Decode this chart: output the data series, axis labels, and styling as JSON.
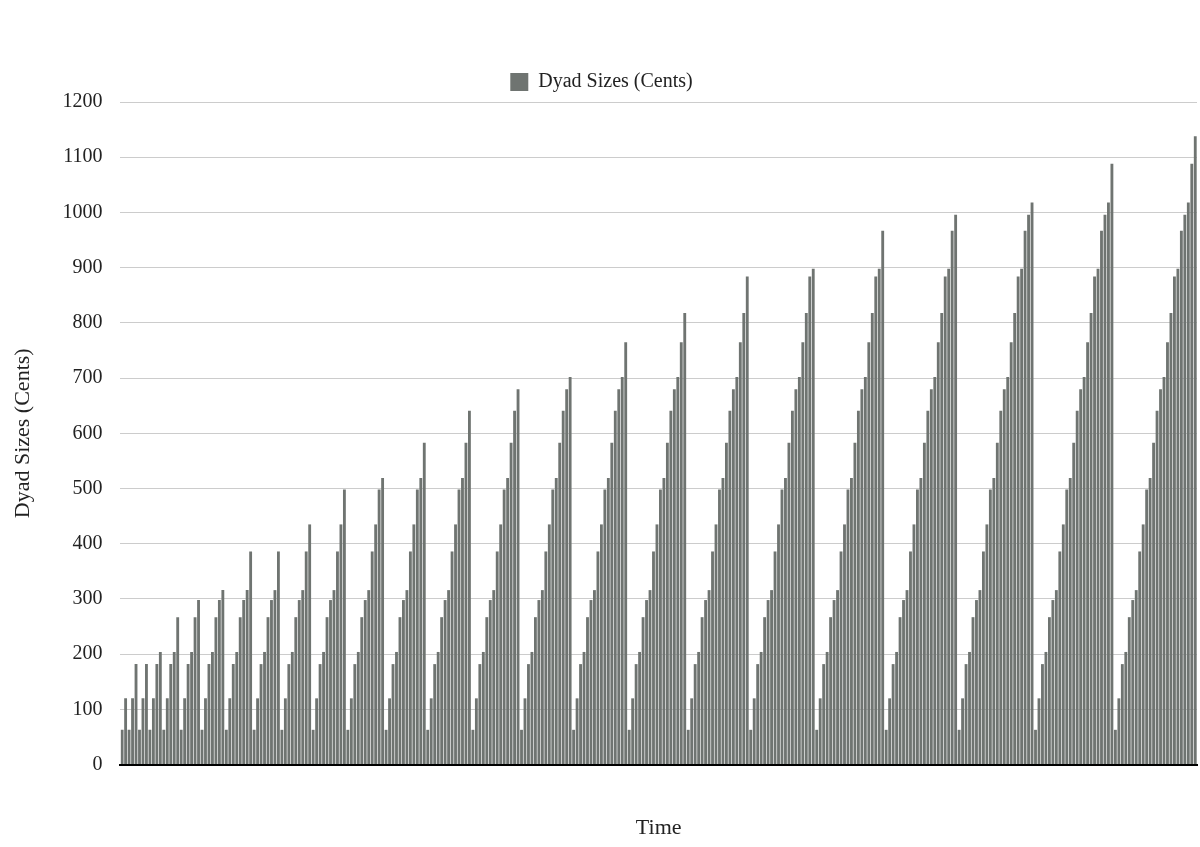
{
  "chart_data": {
    "type": "bar",
    "xlabel": "Time",
    "ylabel": "Dyad Sizes (Cents)",
    "legend": "top",
    "grid": "y",
    "ylim": [
      0,
      1200
    ],
    "yticks": [
      0,
      100,
      200,
      300,
      400,
      500,
      600,
      700,
      800,
      900,
      1000,
      1100,
      1200
    ],
    "categories": [
      null,
      null,
      null,
      null,
      null,
      null,
      null,
      null,
      null,
      null,
      null,
      null,
      null,
      null,
      null,
      null,
      null,
      null,
      null,
      null,
      null,
      null,
      null,
      null,
      null,
      null,
      null,
      null,
      null,
      null,
      null,
      null,
      null,
      null,
      null,
      null,
      null,
      null,
      null,
      null,
      null,
      null,
      null,
      null,
      null,
      null,
      null,
      null,
      null,
      null,
      null,
      null,
      null,
      null,
      null,
      null,
      null,
      null,
      null,
      null,
      null,
      null,
      null,
      null,
      null,
      null,
      null,
      null,
      null,
      null,
      null,
      null,
      null,
      null,
      null,
      null,
      null,
      null,
      null,
      null,
      null,
      null,
      null,
      null,
      null,
      null,
      null,
      null,
      null,
      null,
      null,
      null,
      null,
      null,
      null,
      null,
      null,
      null,
      null,
      null,
      null,
      null,
      null,
      null,
      null,
      null,
      null,
      null,
      null,
      null,
      null,
      null,
      null,
      null,
      null,
      null,
      null,
      null,
      null,
      null,
      null,
      null,
      null,
      null,
      null,
      null,
      null,
      null,
      null,
      null,
      null,
      null,
      null,
      null,
      null,
      null,
      null,
      null,
      null,
      null,
      null,
      null,
      null,
      null,
      null,
      null,
      null,
      null,
      null,
      null,
      null,
      null,
      null,
      null,
      null,
      null,
      null,
      null,
      null,
      null,
      null,
      null,
      null,
      null,
      null,
      null,
      null,
      null,
      null,
      null,
      null,
      null,
      null,
      null,
      null,
      null,
      null,
      null,
      null,
      null,
      null,
      null,
      null,
      null,
      null,
      null,
      null,
      null,
      null,
      null,
      null,
      null,
      null,
      null,
      null,
      null,
      null,
      null,
      null,
      null,
      null,
      null,
      null,
      null,
      null,
      null,
      null,
      null,
      null,
      null,
      null,
      null,
      null,
      null,
      null,
      null,
      null,
      null,
      null,
      null,
      null,
      null,
      null,
      null,
      null,
      null,
      null,
      null,
      null,
      null,
      null,
      null,
      null,
      null,
      null,
      null,
      null,
      null,
      null,
      null,
      null,
      null,
      null,
      null,
      null,
      null,
      null,
      null,
      null,
      null,
      null,
      null,
      null,
      null,
      null,
      null,
      null,
      null,
      null,
      null,
      null,
      null,
      null,
      null,
      null,
      null,
      null,
      null,
      null,
      null,
      null,
      null,
      null,
      null,
      null,
      null,
      null,
      null,
      null,
      null,
      null,
      null,
      null,
      null,
      null,
      null,
      null,
      null,
      null,
      null,
      null,
      null,
      null,
      null,
      null,
      null,
      null,
      null,
      null,
      null,
      null,
      null,
      null,
      null,
      null,
      null,
      null,
      null,
      null,
      null
    ],
    "series": [
      {
        "name": "Dyad Sizes (Cents)",
        "color": "#6f7471",
        "values": [
          63,
          120,
          63,
          120,
          182,
          63,
          120,
          182,
          63,
          120,
          182,
          204,
          63,
          120,
          182,
          204,
          267,
          63,
          120,
          182,
          204,
          267,
          298,
          63,
          120,
          182,
          204,
          267,
          298,
          316,
          63,
          120,
          182,
          204,
          267,
          298,
          316,
          386,
          63,
          120,
          182,
          204,
          267,
          298,
          316,
          386,
          63,
          120,
          182,
          204,
          267,
          298,
          316,
          386,
          435,
          63,
          120,
          182,
          204,
          267,
          298,
          316,
          386,
          435,
          498,
          63,
          120,
          182,
          204,
          267,
          298,
          316,
          386,
          435,
          498,
          519,
          63,
          120,
          182,
          204,
          267,
          298,
          316,
          386,
          435,
          498,
          519,
          583,
          63,
          120,
          182,
          204,
          267,
          298,
          316,
          386,
          435,
          498,
          519,
          583,
          641,
          63,
          120,
          182,
          204,
          267,
          298,
          316,
          386,
          435,
          498,
          519,
          583,
          641,
          680,
          63,
          120,
          182,
          204,
          267,
          298,
          316,
          386,
          435,
          498,
          519,
          583,
          641,
          680,
          702,
          63,
          120,
          182,
          204,
          267,
          298,
          316,
          386,
          435,
          498,
          519,
          583,
          641,
          680,
          702,
          765,
          63,
          120,
          182,
          204,
          267,
          298,
          316,
          386,
          435,
          498,
          519,
          583,
          641,
          680,
          702,
          765,
          818,
          63,
          120,
          182,
          204,
          267,
          298,
          316,
          386,
          435,
          498,
          519,
          583,
          641,
          680,
          702,
          765,
          818,
          884,
          63,
          120,
          182,
          204,
          267,
          298,
          316,
          386,
          435,
          498,
          519,
          583,
          641,
          680,
          702,
          765,
          818,
          884,
          898,
          63,
          120,
          182,
          204,
          267,
          298,
          316,
          386,
          435,
          498,
          519,
          583,
          641,
          680,
          702,
          765,
          818,
          884,
          898,
          967,
          63,
          120,
          182,
          204,
          267,
          298,
          316,
          386,
          435,
          498,
          519,
          583,
          641,
          680,
          702,
          765,
          818,
          884,
          898,
          967,
          996,
          63,
          120,
          182,
          204,
          267,
          298,
          316,
          386,
          435,
          498,
          519,
          583,
          641,
          680,
          702,
          765,
          818,
          884,
          898,
          967,
          996,
          1018,
          63,
          120,
          182,
          204,
          267,
          298,
          316,
          386,
          435,
          498,
          519,
          583,
          641,
          680,
          702,
          765,
          818,
          884,
          898,
          967,
          996,
          1018,
          1088,
          63,
          120,
          182,
          204,
          267,
          298,
          316,
          386,
          435,
          498,
          519,
          583,
          641,
          680,
          702,
          765,
          818,
          884,
          898,
          967,
          996,
          1018,
          1088,
          1138
        ]
      }
    ]
  }
}
